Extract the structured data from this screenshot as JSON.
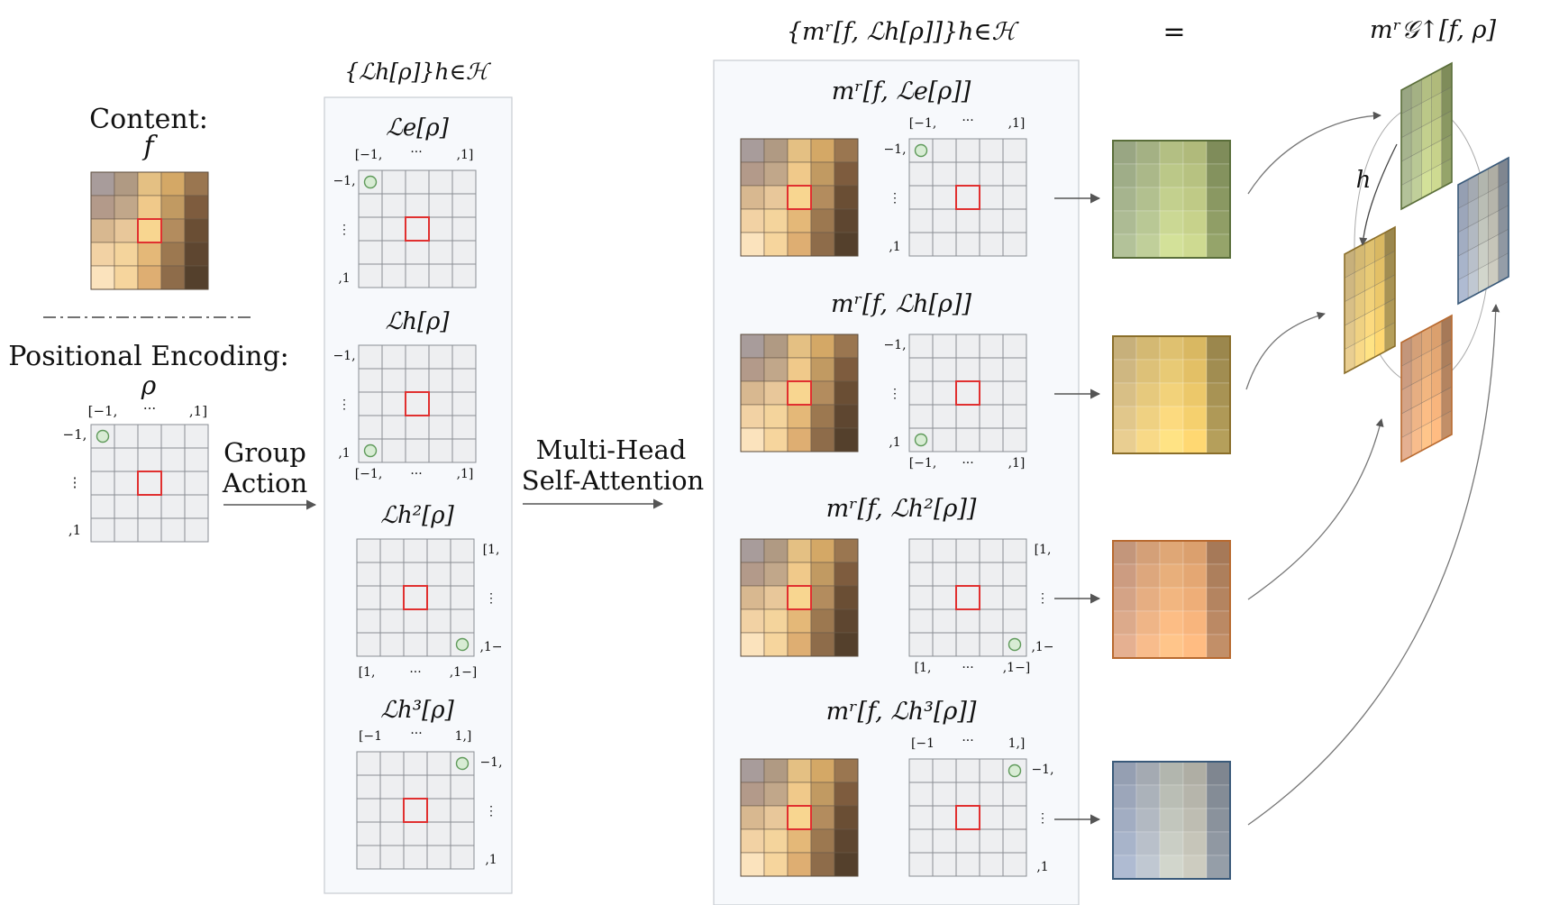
{
  "left": {
    "content_label": "Content:",
    "content_symbol": "f",
    "pos_label": "Positional Encoding:",
    "pos_symbol": "ρ",
    "ticks_top": [
      "[−1,",
      "···",
      ",1]"
    ],
    "ticks_left": [
      "−1,",
      "⋮",
      ",1"
    ]
  },
  "arrow1": {
    "line1": "Group",
    "line2": "Action"
  },
  "arrow2": {
    "line1": "Multi-Head",
    "line2": "Self-Attention"
  },
  "lifted": {
    "set_label": "{ℒℎ[ρ]}ℎ∈ℋ",
    "panels": [
      {
        "label": "ℒe[ρ]",
        "ticks": [
          "[−1,",
          "···",
          ",1]"
        ],
        "side": [
          "−1,",
          "⋮",
          ",1"
        ]
      },
      {
        "label": "ℒh[ρ]",
        "ticks": [
          "[−1,",
          "···",
          ",1]"
        ],
        "side": [
          "−1,",
          "⋮",
          ",1"
        ]
      },
      {
        "label": "ℒh²[ρ]",
        "ticks": [
          "[1,",
          "···",
          ",1−]"
        ],
        "side": [
          "[1,",
          "⋮",
          ",1−"
        ]
      },
      {
        "label": "ℒh³[ρ]",
        "ticks": [
          "[−1",
          "···",
          "1,]"
        ],
        "side": [
          "−1,",
          "⋮",
          ",1"
        ]
      }
    ]
  },
  "attn": {
    "set_label": "{mʳ[f, ℒℎ[ρ]]}ℎ∈ℋ",
    "equals": "=",
    "panels": [
      {
        "label": "mʳ[f, ℒe[ρ]]",
        "ticks": [
          "[−1,",
          "···",
          ",1]"
        ],
        "side": [
          "−1,",
          "⋮",
          ",1"
        ]
      },
      {
        "label": "mʳ[f, ℒh[ρ]]",
        "ticks": [
          "[−1,",
          "···",
          ",1]"
        ],
        "side": [
          "−1,",
          "⋮",
          ",1"
        ]
      },
      {
        "label": "mʳ[f, ℒh²[ρ]]",
        "ticks": [
          "[1,",
          "···",
          ",1−]"
        ],
        "side": [
          "[1,",
          "⋮",
          ",1−"
        ]
      },
      {
        "label": "mʳ[f, ℒh³[ρ]]",
        "ticks": [
          "[−1",
          "···",
          "1,]"
        ],
        "side": [
          "−1,",
          "⋮",
          ",1"
        ]
      }
    ]
  },
  "result": {
    "label": "mʳ𝒢↑[f, ρ]",
    "h_label": "h"
  },
  "colors": {
    "content": [
      [
        "#a89c9b",
        "#b09a83",
        "#e4c083",
        "#d4a866",
        "#9a7650"
      ],
      [
        "#b39a8a",
        "#c1a78a",
        "#f0c98a",
        "#c19a62",
        "#7e5c3e"
      ],
      [
        "#d8b890",
        "#e8c79a",
        "#f8d690",
        "#b38c5e",
        "#6a4e34"
      ],
      [
        "#f2d2a4",
        "#f4d49c",
        "#e4b878",
        "#9c7850",
        "#5e4630"
      ],
      [
        "#fbe3bd",
        "#f6d59d",
        "#deae72",
        "#8e6c4a",
        "#54402c"
      ]
    ],
    "green": [
      "#a6b48e",
      "#b2c08f",
      "#c3d08e",
      "#bfca86",
      "#8a9862"
    ],
    "yellow": [
      "#d8bf86",
      "#e6c97d",
      "#f2d27a",
      "#ecc86a",
      "#a89354"
    ],
    "orange": [
      "#d4a386",
      "#e6ae82",
      "#f2b680",
      "#eeae78",
      "#b48460"
    ],
    "blue": [
      "#a2adc2",
      "#b2b9c2",
      "#c2c6bd",
      "#bebdb2",
      "#8a929c"
    ],
    "accent_red": "#e03030",
    "accent_green": "#8ac08a"
  }
}
